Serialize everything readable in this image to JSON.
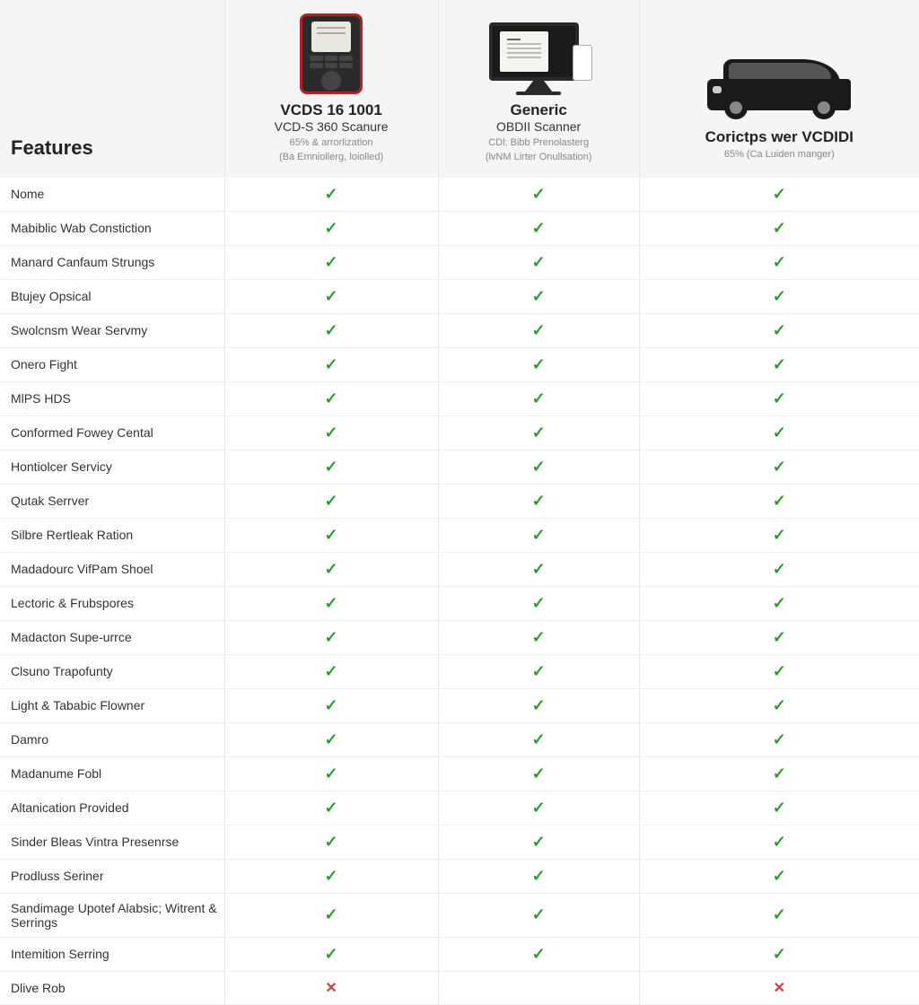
{
  "type": "table",
  "colors": {
    "header_bg": "#f5f5f5",
    "row_border": "#f0f0f0",
    "col_border": "#e8e8e8",
    "check_color": "#2e9b2e",
    "cross_color": "#c94040",
    "text": "#333333",
    "heading": "#222222",
    "meta": "#888888",
    "background": "#ffffff"
  },
  "fonts": {
    "heading_size": 22,
    "title_size": 17,
    "subtitle_size": 14,
    "meta_size": 11,
    "body_size": 14
  },
  "symbols": {
    "check": "✓",
    "cross": "✕"
  },
  "features_label": "Features",
  "columns": [
    {
      "title": "VCDS 16 1001",
      "subtitle": "VCD-S 360 Scanure",
      "meta1": "65% & arrorlization",
      "meta2": "(Ba Emniollerg, loiolled)"
    },
    {
      "title": "Generic",
      "subtitle": "OBDII Scanner",
      "meta1": "CDl; Bibb Prenolasterg",
      "meta2": "(lvNM Lirter Onullsation)"
    },
    {
      "title": "Corictps wer VCDIDI",
      "subtitle": "",
      "meta1": "65% (Ca Luiden manger)",
      "meta2": ""
    }
  ],
  "rows": [
    {
      "label": "Nome",
      "values": [
        "check",
        "check",
        "check"
      ]
    },
    {
      "label": "Mabiblic Wab Constiction",
      "values": [
        "check",
        "check",
        "check"
      ]
    },
    {
      "label": "Manard Canfaum Strungs",
      "values": [
        "check",
        "check",
        "check"
      ]
    },
    {
      "label": "Btujey Opsical",
      "values": [
        "check",
        "check",
        "check"
      ]
    },
    {
      "label": "Swolcnsm Wear Servmy",
      "values": [
        "check",
        "check",
        "check"
      ]
    },
    {
      "label": "Onero Fight",
      "values": [
        "check",
        "check",
        "check"
      ]
    },
    {
      "label": "MlPS HDS",
      "values": [
        "check",
        "check",
        "check"
      ]
    },
    {
      "label": "Conformed Fowey Cental",
      "values": [
        "check",
        "check",
        "check"
      ]
    },
    {
      "label": "Hontiolcer Servicy",
      "values": [
        "check",
        "check",
        "check"
      ]
    },
    {
      "label": "Qutak Serrver",
      "values": [
        "check",
        "check",
        "check"
      ]
    },
    {
      "label": "Silbre Rertleak Ration",
      "values": [
        "check",
        "check",
        "check"
      ]
    },
    {
      "label": "Madadourc VifPam Shoel",
      "values": [
        "check",
        "check",
        "check"
      ]
    },
    {
      "label": "Lectoric & Frubspores",
      "values": [
        "check",
        "check",
        "check"
      ]
    },
    {
      "label": "Madacton Supe-urrce",
      "values": [
        "check",
        "check",
        "check"
      ]
    },
    {
      "label": "Clsuno Trapofunty",
      "values": [
        "check",
        "check",
        "check"
      ]
    },
    {
      "label": "Light & Tababic Flowner",
      "values": [
        "check",
        "check",
        "check"
      ]
    },
    {
      "label": "Damro",
      "values": [
        "check",
        "check",
        "check"
      ]
    },
    {
      "label": "Madanume Fobl",
      "values": [
        "check",
        "check",
        "check"
      ]
    },
    {
      "label": "Altanication Provided",
      "values": [
        "check",
        "check",
        "check"
      ]
    },
    {
      "label": "Sinder Bleas Vintra Presenrse",
      "values": [
        "check",
        "check",
        "check"
      ]
    },
    {
      "label": "Prodluss Seriner",
      "values": [
        "check",
        "check",
        "check"
      ]
    },
    {
      "label": "Sandimage Upotef Alabsic; Witrent & Serrings",
      "values": [
        "check",
        "check",
        "check"
      ]
    },
    {
      "label": "Intemition Serring",
      "values": [
        "check",
        "check",
        "check"
      ]
    },
    {
      "label": "Dlive Rob",
      "values": [
        "cross",
        "",
        "cross"
      ]
    }
  ]
}
